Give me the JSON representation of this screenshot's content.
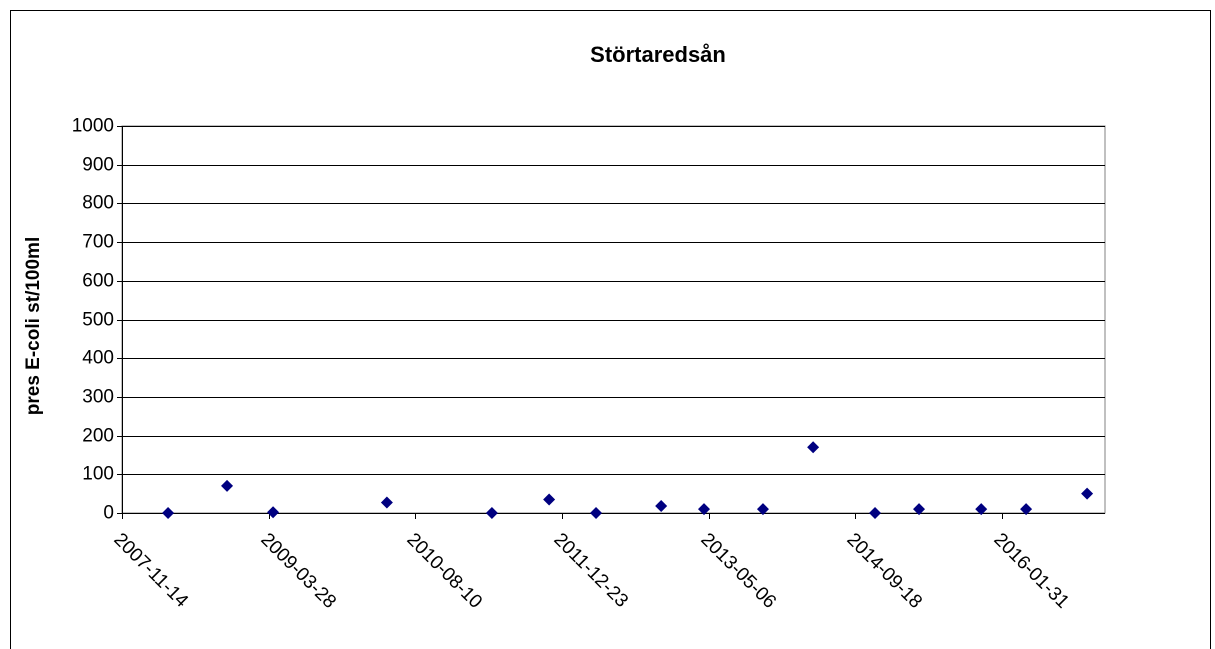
{
  "chart_data": {
    "type": "scatter",
    "title": "Störtaredsån",
    "y_label": "pres E-coli st/100ml",
    "series": [
      {
        "color": "#000080",
        "x": [
          "2008-04-19",
          "2008-11-06",
          "2009-04-12",
          "2010-05-05",
          "2011-04-28",
          "2011-11-09",
          "2012-04-17",
          "2012-11-25",
          "2013-04-20",
          "2013-11-07",
          "2014-04-27",
          "2014-11-24",
          "2015-04-23",
          "2015-11-21",
          "2016-04-22",
          "2016-11-16"
        ],
        "values": [
          0,
          70,
          2,
          27,
          0,
          35,
          0,
          18,
          10,
          10,
          170,
          0,
          10,
          10,
          10,
          50
        ]
      }
    ],
    "xlim": [
      "2007-11-14",
      "2017-01-16"
    ],
    "xticks": [
      "2007-11-14",
      "2009-03-28",
      "2010-08-10",
      "2011-12-23",
      "2013-05-06",
      "2014-09-18",
      "2016-01-31"
    ],
    "ylim": [
      0,
      1000
    ],
    "yticks": [
      0,
      100,
      200,
      300,
      400,
      500,
      600,
      700,
      800,
      900,
      1000
    ],
    "grid": true
  }
}
